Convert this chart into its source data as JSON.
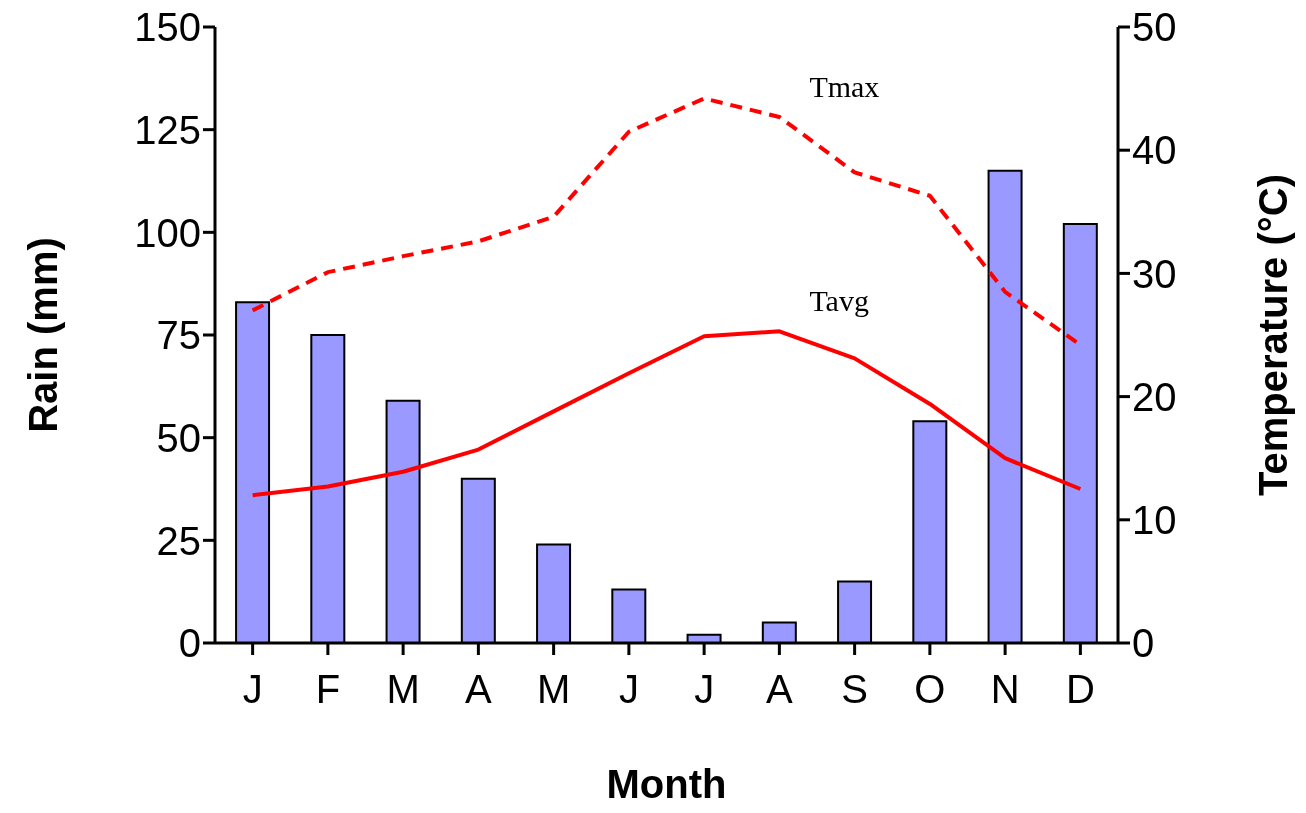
{
  "chart_data": {
    "type": "bar",
    "xlabel": "Month",
    "ylabel": "Rain (mm)",
    "y2label": "Temperature (°C)",
    "categories": [
      "J",
      "F",
      "M",
      "A",
      "M",
      "J",
      "J",
      "A",
      "S",
      "O",
      "N",
      "D"
    ],
    "series": [
      {
        "color": "#9999ff",
        "values": [
          83,
          75,
          59,
          40,
          24,
          13,
          2,
          5,
          15,
          54,
          115,
          102
        ]
      },
      {
        "type": "line",
        "name": "Tmax",
        "color": "#ff0000",
        "axis": "y2",
        "line_style": "dashed",
        "values": [
          27,
          30.1,
          31.4,
          32.6,
          34.6,
          41.5,
          44.2,
          42.7,
          38.2,
          36.3,
          28.5,
          24.2
        ]
      },
      {
        "type": "line",
        "name": "Tavg",
        "color": "#ff0000",
        "axis": "y2",
        "line_style": "solid",
        "values": [
          12,
          12.7,
          13.9,
          15.7,
          18.8,
          21.9,
          24.9,
          25.3,
          23.1,
          19.4,
          15,
          12.5
        ]
      }
    ],
    "ylim": [
      0,
      150
    ],
    "yticks": [
      0,
      25,
      50,
      75,
      100,
      125,
      150
    ],
    "y2lim": [
      0,
      50
    ],
    "y2ticks": [
      0,
      10,
      20,
      30,
      40,
      50
    ],
    "grid": false,
    "legend": false,
    "marker": "none"
  }
}
